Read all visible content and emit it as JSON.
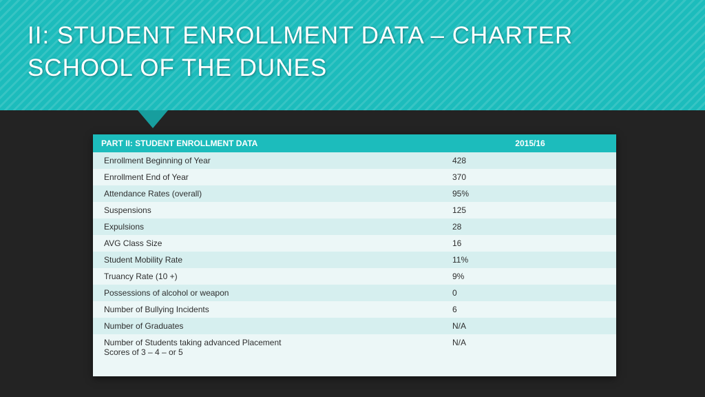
{
  "header": {
    "title": "II:  STUDENT ENROLLMENT DATA – CHARTER SCHOOL OF THE DUNES"
  },
  "table": {
    "type": "table",
    "header_bg": "#1cbcbc",
    "row_colors": [
      "#d6efef",
      "#ecf7f7"
    ],
    "columns": {
      "c0": "PART II: STUDENT ENROLLMENT DATA",
      "c1": "",
      "c2": "2015/16"
    },
    "rows": [
      {
        "label": "Enrollment Beginning of Year",
        "mid": "",
        "value": "428"
      },
      {
        "label": "Enrollment End of Year",
        "mid": "",
        "value": "370"
      },
      {
        "label": "Attendance Rates (overall)",
        "mid": "",
        "value": "95%"
      },
      {
        "label": "Suspensions",
        "mid": "",
        "value": "125"
      },
      {
        "label": "Expulsions",
        "mid": "",
        "value": "28"
      },
      {
        "label": "AVG Class Size",
        "mid": "",
        "value": "16"
      },
      {
        "label": "Student Mobility Rate",
        "mid": "",
        "value": "11%"
      },
      {
        "label": "Truancy Rate (10 +)",
        "mid": "",
        "value": "9%"
      },
      {
        "label": "Possessions of alcohol or weapon",
        "mid": "",
        "value": "0"
      },
      {
        "label": "Number of Bullying Incidents",
        "mid": "",
        "value": "6"
      },
      {
        "label": "Number of Graduates",
        "mid": "",
        "value": "N/A"
      },
      {
        "label": "Number of Students taking advanced Placement\nScores of 3 – 4 – or 5",
        "mid": "",
        "value": "N/A"
      }
    ]
  }
}
